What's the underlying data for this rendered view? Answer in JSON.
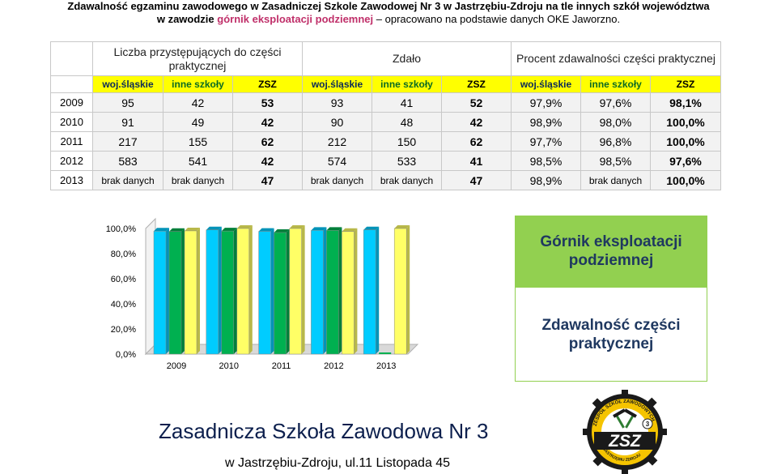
{
  "title": {
    "line1": "Zdawalność egzaminu zawodowego w Zasadniczej Szkole Zawodowej Nr 3 w Jastrzębiu-Zdroju na tle innych szkół województwa",
    "line2_prefix": "w zawodzie",
    "line2_accent": "górnik eksploatacji podziemnej",
    "line2_suffix": "– opracowano na podstawie danych OKE Jaworzno."
  },
  "table": {
    "group_headers": [
      "Liczba przystępujących do części praktycznej",
      "Zdało",
      "Procent zdawalności części praktycznej"
    ],
    "sub_headers": [
      "woj.śląskie",
      "inne szkoły",
      "ZSZ"
    ],
    "rows": [
      {
        "year": "2009",
        "cells": [
          "95",
          "42",
          "53",
          "93",
          "41",
          "52",
          "97,9%",
          "97,6%",
          "98,1%"
        ]
      },
      {
        "year": "2010",
        "cells": [
          "91",
          "49",
          "42",
          "90",
          "48",
          "42",
          "98,9%",
          "98,0%",
          "100,0%"
        ]
      },
      {
        "year": "2011",
        "cells": [
          "217",
          "155",
          "62",
          "212",
          "150",
          "62",
          "97,7%",
          "96,8%",
          "100,0%"
        ]
      },
      {
        "year": "2012",
        "cells": [
          "583",
          "541",
          "42",
          "574",
          "533",
          "41",
          "98,5%",
          "98,5%",
          "97,6%"
        ]
      },
      {
        "year": "2013",
        "cells": [
          "brak danych",
          "brak danych",
          "47",
          "brak danych",
          "brak danych",
          "47",
          "98,9%",
          "brak danych",
          "100,0%"
        ]
      }
    ]
  },
  "chart_data": {
    "type": "bar",
    "categories": [
      "2009",
      "2010",
      "2011",
      "2012",
      "2013"
    ],
    "series": [
      {
        "values": [
          97.9,
          98.9,
          97.7,
          98.5,
          98.9
        ]
      },
      {
        "values": [
          97.6,
          98.0,
          96.8,
          98.5,
          null
        ]
      },
      {
        "values": [
          98.1,
          100.0,
          100.0,
          97.6,
          100.0
        ]
      }
    ],
    "series_colors": [
      "#00ccff",
      "#00b050",
      "#ffff66"
    ],
    "y_tick_labels": [
      "100,0%",
      "80,0%",
      "60,0%",
      "40,0%",
      "20,0%",
      "0,0%"
    ],
    "ylim": [
      0,
      100
    ],
    "grid": false,
    "title": "",
    "xlabel": "",
    "ylabel": ""
  },
  "legend_box": {
    "line1": "Górnik eksploatacji podziemnej",
    "line2": "Zdawalność części praktycznej"
  },
  "footer": {
    "school_name": "Zasadnicza Szkoła Zawodowa Nr 3",
    "address": "w Jastrzębiu-Zdroju, ul.11 Listopada 45"
  },
  "logo": {
    "text": "ZSZ",
    "ring_text": "ZESPÓŁ SZKÓŁ ZAWODOWYCH",
    "ring_text_bottom": "W JASTRZĘBIU ZDROJU",
    "number": "3"
  }
}
